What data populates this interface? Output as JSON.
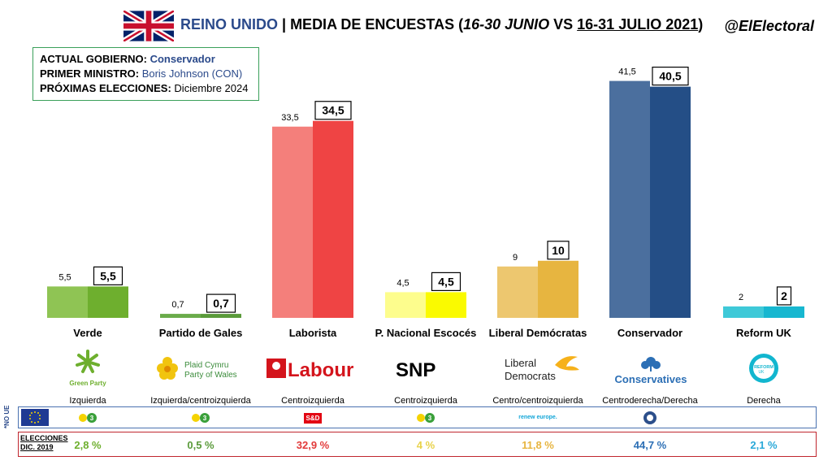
{
  "header": {
    "country": "REINO UNIDO",
    "separator": " | ",
    "title_main": "MEDIA DE ENCUESTAS (",
    "period_prev": "16-30 JUNIO",
    "vs": " VS ",
    "period_curr": "16-31 JULIO 2021",
    "close": ")",
    "handle": "@ElElectoral"
  },
  "info": {
    "gov_label": "ACTUAL GOBIERNO:",
    "gov_value": "Conservador",
    "pm_label": "PRIMER MINISTRO:",
    "pm_value": "Boris Johnson (CON)",
    "next_label": "PRÓXIMAS ELECCIONES:",
    "next_value": "Diciembre 2024"
  },
  "chart_data": {
    "type": "bar",
    "categories": [
      "Verde",
      "Partido de Gales",
      "Laborista",
      "P. Nacional Escocés",
      "Liberal Demócratas",
      "Conservador",
      "Reform UK"
    ],
    "series": [
      {
        "name": "16-30 JUNIO",
        "values": [
          5.5,
          0.7,
          33.5,
          4.5,
          9,
          41.5,
          2
        ],
        "labels": [
          "5,5",
          "0,7",
          "33,5",
          "4,5",
          "9",
          "41,5",
          "2"
        ]
      },
      {
        "name": "16-31 JULIO 2021",
        "values": [
          5.5,
          0.7,
          34.5,
          4.5,
          10,
          40.5,
          2
        ],
        "labels": [
          "5,5",
          "0,7",
          "34,5",
          "4,5",
          "10",
          "40,5",
          "2"
        ]
      }
    ],
    "colors_prev": [
      "#8fc454",
      "#6aab4a",
      "#f47f7b",
      "#fdfd8d",
      "#edc76f",
      "#4b6f9e",
      "#3ec9d8"
    ],
    "colors_curr": [
      "#6eaf2e",
      "#5a9a3a",
      "#ef4444",
      "#fafa00",
      "#e7b540",
      "#244e86",
      "#17b7d0"
    ],
    "ylim": [
      0,
      45
    ]
  },
  "parties": [
    {
      "logo": "Green Party",
      "ideology": "Izquierda",
      "eu_group": "G/EFA",
      "result": "2,8 %",
      "color": "#6eaf2e"
    },
    {
      "logo_a": "Plaid Cymru",
      "logo_b": "Party of Wales",
      "ideology": "Izquierda/centroizquierda",
      "eu_group": "G/EFA",
      "result": "0,5 %",
      "color": "#5a9a3a"
    },
    {
      "logo": "Labour",
      "ideology": "Centroizquierda",
      "eu_group": "S&D",
      "result": "32,9 %",
      "color": "#e23a3a"
    },
    {
      "logo": "SNP",
      "ideology": "Centroizquierda",
      "eu_group": "G/EFA",
      "result": "4 %",
      "color": "#e8d24a"
    },
    {
      "logo_a": "Liberal",
      "logo_b": "Democrats",
      "ideology": "Centro/centroizquierda",
      "eu_group": "renew europe.",
      "result": "11,8 %",
      "color": "#e7b540"
    },
    {
      "logo": "Conservatives",
      "ideology": "Centroderecha/Derecha",
      "eu_group": "ECR",
      "result": "44,7 %",
      "color": "#2c6fb5"
    },
    {
      "logo_a": "REFORM",
      "logo_b": "UK",
      "ideology": "Derecha",
      "eu_group": "",
      "result": "2,1 %",
      "color": "#29a8d8"
    }
  ],
  "eu_side_label": "*NO UE",
  "elections": {
    "label_a": "ELECCIONES",
    "label_b": "DIC. 2019"
  }
}
